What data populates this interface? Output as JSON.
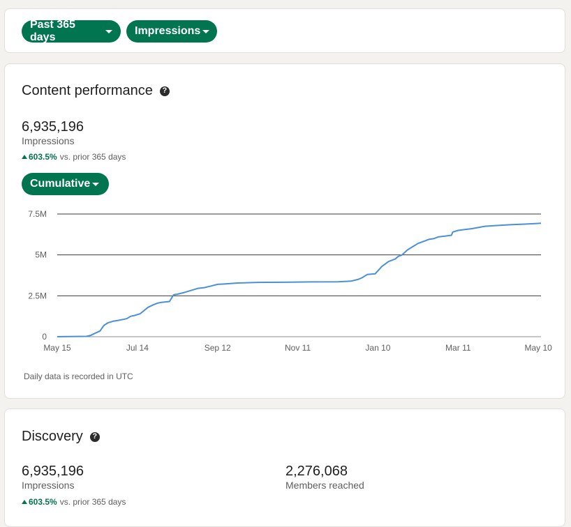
{
  "filters": {
    "period_label": "Past 365 days",
    "metric_label": "Impressions"
  },
  "content_performance": {
    "title": "Content performance",
    "help_icon": "question-circle-icon",
    "value": "6,935,196",
    "label": "Impressions",
    "change_pct": "603.5%",
    "change_text": "vs. prior 365 days",
    "mode_label": "Cumulative",
    "footnote": "Daily data is recorded in UTC"
  },
  "chart_data": {
    "type": "line",
    "x_tick_labels": [
      "May 15",
      "Jul 14",
      "Sep 12",
      "Nov 11",
      "Jan 10",
      "Mar 11",
      "May 10"
    ],
    "x_tick_days": [
      0,
      60,
      120,
      180,
      240,
      300,
      360
    ],
    "y_tick_labels": [
      "0",
      "2.5M",
      "5M",
      "7.5M"
    ],
    "y_tick_values": [
      0,
      2500000,
      5000000,
      7500000
    ],
    "ylim": [
      0,
      7500000
    ],
    "xlim_days": [
      0,
      362
    ],
    "grid": true,
    "line_color": "#4a90d9",
    "series": [
      {
        "x_days": [
          0,
          10,
          22,
          25,
          28,
          32,
          35,
          38,
          42,
          46,
          52,
          55,
          58,
          62,
          68,
          72,
          75,
          78,
          84,
          87,
          88,
          90,
          95,
          105,
          110,
          115,
          120,
          125,
          135,
          150,
          170,
          190,
          210,
          220,
          225,
          228,
          232,
          238,
          243,
          248,
          253,
          255,
          258,
          262,
          266,
          270,
          275,
          278,
          282,
          285,
          290,
          295,
          296,
          300,
          305,
          310,
          320,
          330,
          340,
          350,
          362
        ],
        "values": [
          0,
          10000,
          20000,
          80000,
          200000,
          350000,
          700000,
          850000,
          950000,
          1000000,
          1100000,
          1250000,
          1300000,
          1400000,
          1800000,
          1950000,
          2050000,
          2100000,
          2150000,
          2550000,
          2580000,
          2600000,
          2700000,
          2950000,
          3000000,
          3100000,
          3200000,
          3220000,
          3280000,
          3320000,
          3330000,
          3350000,
          3360000,
          3400000,
          3500000,
          3600000,
          3800000,
          3850000,
          4300000,
          4600000,
          4750000,
          4900000,
          5000000,
          5300000,
          5500000,
          5700000,
          5850000,
          5950000,
          6000000,
          6100000,
          6150000,
          6200000,
          6400000,
          6500000,
          6550000,
          6600000,
          6750000,
          6800000,
          6850000,
          6880000,
          6935196
        ]
      }
    ]
  },
  "discovery": {
    "title": "Discovery",
    "help_icon": "question-circle-icon",
    "impressions_value": "6,935,196",
    "impressions_label": "Impressions",
    "impressions_change_pct": "603.5%",
    "impressions_change_text": "vs. prior 365 days",
    "members_value": "2,276,068",
    "members_label": "Members reached"
  }
}
